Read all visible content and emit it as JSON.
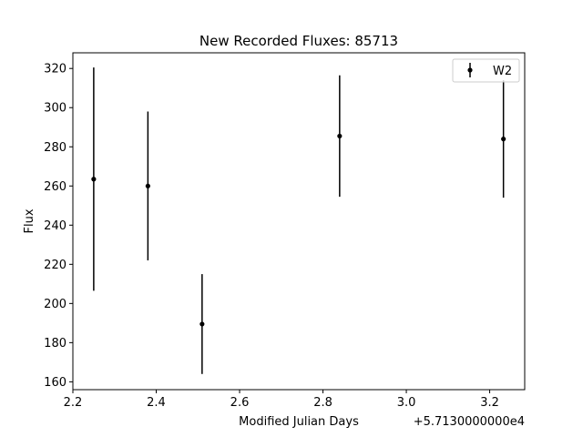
{
  "chart_data": {
    "type": "scatter",
    "title": "New Recorded Fluxes: 85713",
    "xlabel": "Modified Julian Days",
    "ylabel": "Flux",
    "x_offset_label": "+5.7130000000e4",
    "xlim": [
      57132.2,
      57133.284
    ],
    "ylim": [
      156,
      328
    ],
    "xticks": [
      57132.2,
      57132.4,
      57132.6,
      57132.8,
      57133.0,
      57133.2
    ],
    "xtick_labels": [
      "2.2",
      "2.4",
      "2.6",
      "2.8",
      "3.0",
      "3.2"
    ],
    "yticks": [
      160,
      180,
      200,
      220,
      240,
      260,
      280,
      300,
      320
    ],
    "yticks_labels": [
      "160",
      "180",
      "200",
      "220",
      "240",
      "260",
      "280",
      "300",
      "320"
    ],
    "grid": false,
    "legend_position": "top-right",
    "series": [
      {
        "name": "W2",
        "color": "#000000",
        "marker": "circle",
        "points": [
          {
            "x": 57132.25,
            "y": 263.5,
            "yerr": 57
          },
          {
            "x": 57132.38,
            "y": 260,
            "yerr": 38
          },
          {
            "x": 57132.51,
            "y": 189.5,
            "yerr": 25.5
          },
          {
            "x": 57132.84,
            "y": 285.5,
            "yerr": 31
          },
          {
            "x": 57133.233,
            "y": 284,
            "yerr": 30
          }
        ]
      }
    ]
  }
}
